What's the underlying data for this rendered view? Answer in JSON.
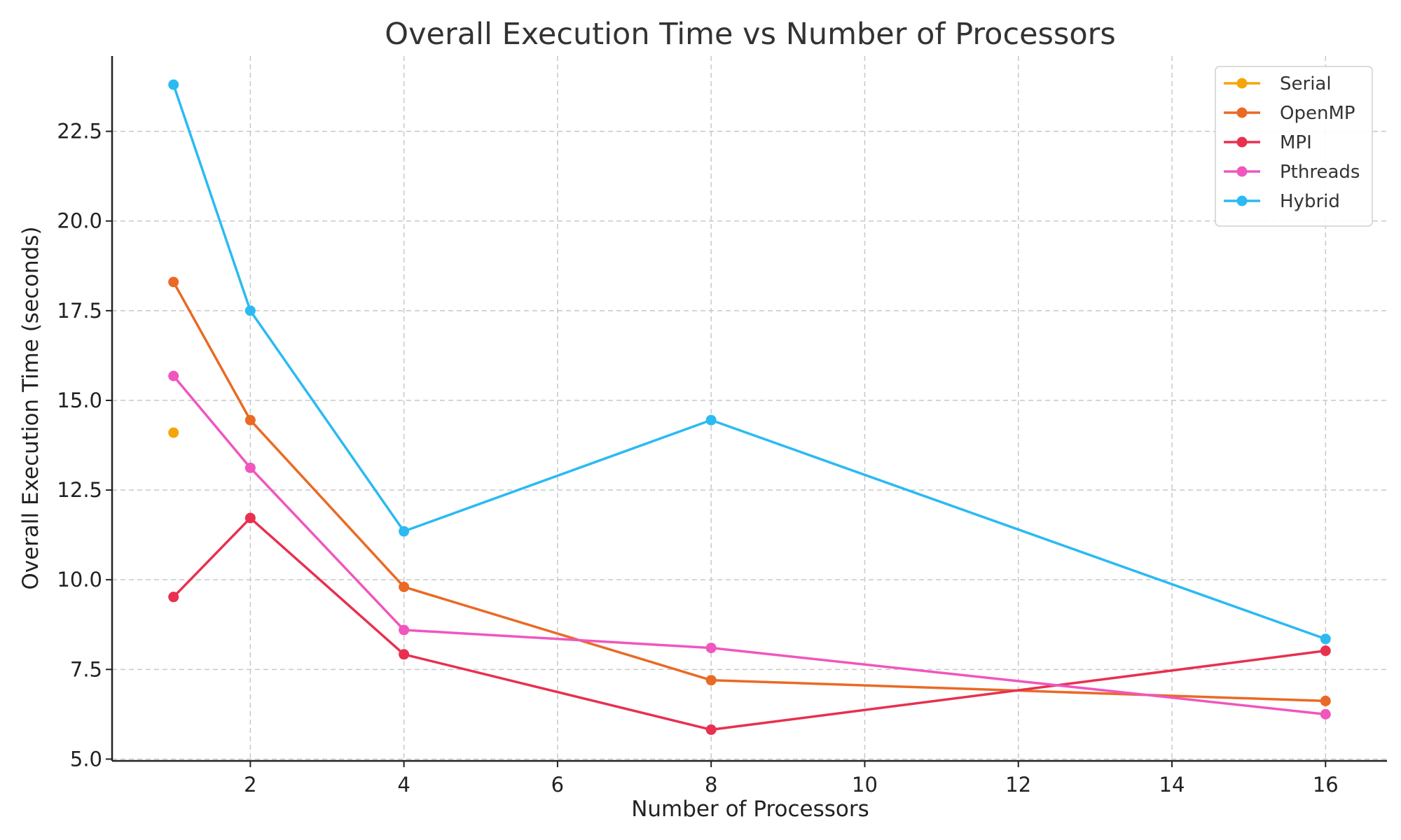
{
  "chart_data": {
    "type": "line",
    "title": "Overall Execution Time vs Number of Processors",
    "xlabel": "Number of Processors",
    "ylabel": "Overall Execution Time (seconds)",
    "xlim": [
      0.2,
      16.8
    ],
    "ylim": [
      4.95,
      24.6
    ],
    "xticks": [
      2,
      4,
      6,
      8,
      10,
      12,
      14,
      16
    ],
    "yticks": [
      5.0,
      7.5,
      10.0,
      12.5,
      15.0,
      17.5,
      20.0,
      22.5
    ],
    "xtick_labels": [
      "2",
      "4",
      "6",
      "8",
      "10",
      "12",
      "14",
      "16"
    ],
    "ytick_labels": [
      "5.0",
      "7.5",
      "10.0",
      "12.5",
      "15.0",
      "17.5",
      "20.0",
      "22.5"
    ],
    "grid": true,
    "legend_position": "top-right",
    "series": [
      {
        "name": "Serial",
        "color": "#f5a50a",
        "x": [
          1
        ],
        "y": [
          14.1
        ]
      },
      {
        "name": "OpenMP",
        "color": "#e96a25",
        "x": [
          1,
          2,
          4,
          8,
          16
        ],
        "y": [
          18.3,
          14.45,
          9.8,
          7.2,
          6.62
        ]
      },
      {
        "name": "MPI",
        "color": "#e8304f",
        "x": [
          1,
          2,
          4,
          8,
          16
        ],
        "y": [
          9.52,
          11.72,
          7.92,
          5.82,
          8.02
        ]
      },
      {
        "name": "Pthreads",
        "color": "#f056bd",
        "x": [
          1,
          2,
          4,
          8,
          16
        ],
        "y": [
          15.68,
          13.12,
          8.6,
          8.1,
          6.25
        ]
      },
      {
        "name": "Hybrid",
        "color": "#2bbaf2",
        "x": [
          1,
          2,
          4,
          8,
          16
        ],
        "y": [
          23.8,
          17.5,
          11.35,
          14.45,
          8.35
        ]
      }
    ]
  }
}
